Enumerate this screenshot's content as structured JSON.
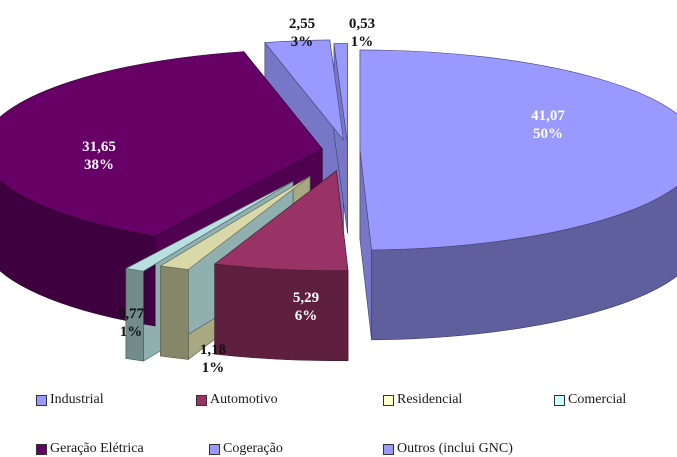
{
  "chart_data": {
    "type": "pie",
    "title": "",
    "categories": [
      "Industrial",
      "Automotivo",
      "Residencial",
      "Comercial",
      "Geração Elétrica",
      "Cogeração",
      "Outros (inclui GNC)"
    ],
    "values": [
      41.07,
      5.29,
      1.18,
      0.77,
      31.65,
      2.55,
      0.53
    ],
    "value_labels": [
      "41,07",
      "5,29",
      "1,18",
      "0,77",
      "31,65",
      "2,55",
      "0,53"
    ],
    "percent_labels": [
      "50%",
      "6%",
      "1%",
      "1%",
      "38%",
      "3%",
      "1%"
    ],
    "colors": [
      "#9999ff",
      "#993366",
      "#d8d8a8",
      "#b8e0e0",
      "#660066",
      "#9999ff",
      "#9999ff"
    ],
    "legend_position": "bottom",
    "exploded": true,
    "three_d": true
  }
}
